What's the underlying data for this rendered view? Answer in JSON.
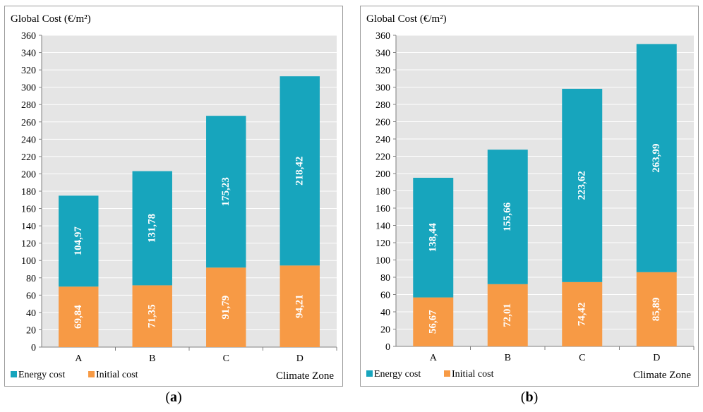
{
  "colors": {
    "energy": "#17a5bd",
    "initial": "#f79a45",
    "plot_bg": "#e5e5e5",
    "grid": "#ffffff"
  },
  "panels": [
    {
      "label_open": "(",
      "label_letter": "a",
      "label_close": ")"
    },
    {
      "label_open": "(",
      "label_letter": "b",
      "label_close": ")"
    }
  ],
  "chart_data": [
    {
      "type": "bar",
      "stacked": true,
      "ylabel": "Global Cost (€/m²)",
      "xlabel": "Climate Zone",
      "categories": [
        "A",
        "B",
        "C",
        "D"
      ],
      "ylim": [
        0,
        360
      ],
      "ytick_step": 20,
      "grid": true,
      "legend_position": "bottom-left",
      "series": [
        {
          "name": "Initial cost",
          "values": [
            69.84,
            71.35,
            91.79,
            94.21
          ],
          "labels": [
            "69,84",
            "71,35",
            "91,79",
            "94,21"
          ]
        },
        {
          "name": "Energy cost",
          "values": [
            104.97,
            131.78,
            175.23,
            218.42
          ],
          "labels": [
            "104,97",
            "131,78",
            "175,23",
            "218,42"
          ]
        }
      ]
    },
    {
      "type": "bar",
      "stacked": true,
      "ylabel": "Global Cost (€/m²)",
      "xlabel": "Climate Zone",
      "categories": [
        "A",
        "B",
        "C",
        "D"
      ],
      "ylim": [
        0,
        360
      ],
      "ytick_step": 20,
      "grid": true,
      "legend_position": "bottom-left",
      "series": [
        {
          "name": "Initial cost",
          "values": [
            56.67,
            72.01,
            74.42,
            85.89
          ],
          "labels": [
            "56,67",
            "72,01",
            "74,42",
            "85,89"
          ]
        },
        {
          "name": "Energy cost",
          "values": [
            138.44,
            155.66,
            223.62,
            263.99
          ],
          "labels": [
            "138,44",
            "155,66",
            "223,62",
            "263,99"
          ]
        }
      ]
    }
  ]
}
